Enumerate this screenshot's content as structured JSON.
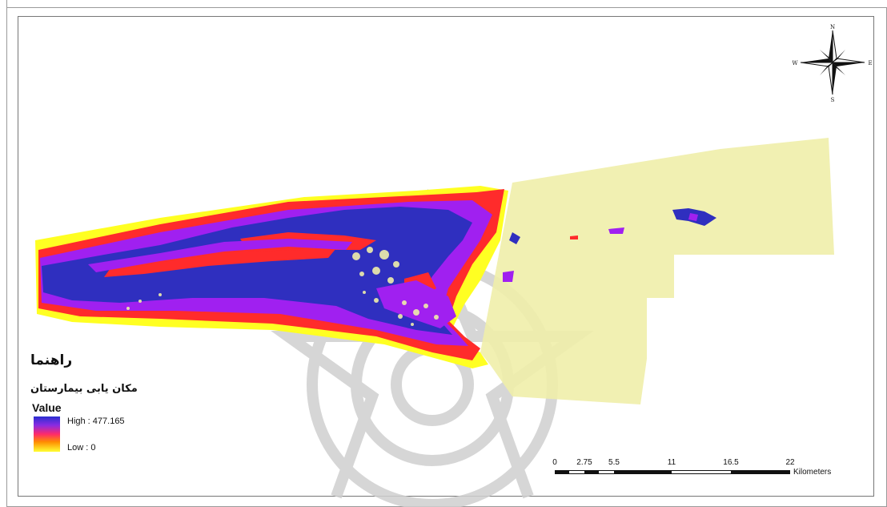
{
  "legend": {
    "title": "راهنما",
    "layer_name": "مکان یابی بیمارستان",
    "field_label": "Value",
    "high_label": "High : 477.165",
    "low_label": "Low : 0",
    "ramp_colors": [
      "#2a2fd0",
      "#8a2be2",
      "#ff2a6a",
      "#ff8c00",
      "#ffff33"
    ]
  },
  "scale_bar": {
    "labels": [
      "0",
      "2.75",
      "5.5",
      "11",
      "16.5",
      "22"
    ],
    "unit": "Kilometers"
  },
  "north_arrow": {
    "n": "N",
    "s": "S",
    "e": "E",
    "w": "W"
  },
  "colors": {
    "study_area": "#efeeaa",
    "class_yellow": "#ffff22",
    "class_red": "#ff2b2b",
    "class_violet": "#a020f0",
    "class_blue": "#2f2fbf",
    "watermark": "#c8c8c8"
  }
}
